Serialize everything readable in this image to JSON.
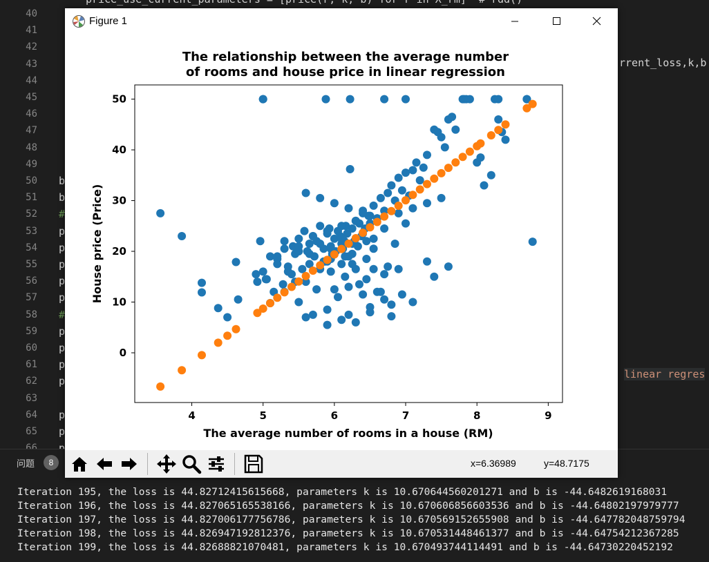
{
  "editor": {
    "line_numbers": [
      "40",
      "41",
      "42",
      "43",
      "44",
      "45",
      "46",
      "47",
      "48",
      "49",
      "50",
      "51",
      "52",
      "53",
      "54",
      "55",
      "56",
      "57",
      "58",
      "59",
      "60",
      "61",
      "62",
      "63",
      "64",
      "65",
      "66"
    ],
    "top_fragment": "price_use_current_parameters = [price(r, k, b) for r in X_rm]  # rdd()",
    "right_fragment_43": "rrent_loss,k,b",
    "right_fragment_62": "linear regres",
    "left_chars": {
      "50": "b",
      "51": "b",
      "52": "#",
      "53": "p",
      "54": "p",
      "55": "p",
      "56": "p",
      "57": "p",
      "58": "#",
      "59": "p",
      "60": "p",
      "61": "p",
      "62": "p",
      "64": "p",
      "65": "p",
      "66": "p"
    }
  },
  "panel": {
    "problems_label": "问题",
    "problems_count": "8"
  },
  "terminal": {
    "lines": [
      "Iteration 195, the loss is 44.82712415615668, parameters k is 10.670644560201271 and b is -44.6482619168031",
      "Iteration 196, the loss is 44.827065165538166, parameters k is 10.670606856603536 and b is -44.64802197979777",
      "Iteration 197, the loss is 44.827006177756786, parameters k is 10.670569152655908 and b is -44.647782048759794",
      "Iteration 198, the loss is 44.826947192812376, parameters k is 10.670531448461377 and b is -44.64754212367285",
      "Iteration 199, the loss is 44.82688821070481, parameters k is 10.670493744114491 and b is -44.64730220452192"
    ]
  },
  "window": {
    "title": "Figure 1",
    "minimize_icon": "minimize-icon",
    "maximize_icon": "maximize-icon",
    "close_icon": "close-icon"
  },
  "toolbar": {
    "icons": [
      "home-icon",
      "back-arrow-icon",
      "forward-arrow-icon",
      "pan-icon",
      "zoom-icon",
      "configure-subplots-icon",
      "save-icon"
    ],
    "x_readout": "x=6.36989",
    "y_readout": "y=48.7175"
  },
  "colors": {
    "scatter": "#1f77b4",
    "fit": "#ff7f0e"
  },
  "chart_data": {
    "type": "scatter",
    "title": "The relationship between the average number\nof rooms and house price in linear regression",
    "title_lines": [
      "The relationship between the average number",
      "of rooms and house price in linear regression"
    ],
    "xlabel": "The average number of rooms in a house (RM)",
    "ylabel": "House price (Price)",
    "xlim": [
      3.2,
      9.2
    ],
    "ylim": [
      -9.8,
      52.8
    ],
    "xticks": [
      4,
      5,
      6,
      7,
      8,
      9
    ],
    "yticks": [
      0,
      10,
      20,
      30,
      40,
      50
    ],
    "grid": false,
    "series": [
      {
        "kind": "data",
        "color": "#1f77b4",
        "x": [
          3.56,
          3.86,
          4.14,
          4.14,
          4.37,
          4.5,
          4.62,
          4.65,
          4.92,
          4.96,
          5.0,
          5.0,
          5.04,
          5.1,
          5.15,
          5.2,
          5.28,
          5.3,
          5.35,
          5.42,
          5.45,
          5.5,
          5.55,
          5.58,
          5.62,
          5.65,
          5.7,
          5.72,
          5.75,
          5.8,
          5.85,
          5.87,
          5.9,
          5.93,
          5.95,
          5.97,
          6.0,
          6.02,
          6.05,
          6.08,
          6.1,
          6.12,
          6.14,
          6.16,
          6.18,
          6.2,
          6.22,
          6.25,
          6.28,
          6.3,
          6.33,
          6.35,
          6.38,
          6.4,
          6.43,
          6.45,
          6.48,
          6.5,
          6.55,
          6.6,
          6.65,
          6.7,
          6.75,
          6.8,
          6.85,
          6.9,
          6.95,
          7.0,
          7.05,
          7.1,
          7.15,
          7.2,
          7.25,
          7.3,
          7.4,
          7.45,
          7.5,
          7.55,
          7.6,
          7.65,
          7.7,
          7.8,
          7.82,
          7.85,
          7.9,
          8.0,
          8.05,
          8.25,
          8.3,
          8.35,
          8.4,
          8.7,
          8.78,
          5.0,
          5.88,
          6.22,
          6.7,
          7.0,
          5.2,
          5.4,
          5.6,
          5.8,
          6.0,
          6.2,
          6.4,
          6.6,
          6.8,
          5.5,
          5.7,
          5.9,
          6.1,
          6.3,
          6.5,
          6.7,
          5.3,
          5.6,
          5.9,
          6.2,
          6.5,
          6.8,
          7.1,
          5.45,
          5.75,
          6.05,
          6.35,
          6.65,
          6.95,
          6.15,
          6.45,
          5.95,
          6.25,
          6.55,
          5.85,
          6.15,
          6.45,
          6.75,
          5.65,
          5.95,
          6.25,
          6.55,
          7.4,
          7.3,
          6.7,
          6.9,
          7.6,
          8.1,
          8.2,
          5.1,
          5.3,
          5.5,
          5.7,
          5.9,
          6.1,
          6.3,
          6.5,
          4.9,
          5.2,
          5.5,
          5.8,
          6.1,
          6.4,
          6.7,
          7.0,
          5.05,
          5.35,
          5.65,
          5.95,
          6.25,
          6.55,
          6.85,
          6.6,
          6.4,
          6.2,
          6.0,
          5.8,
          5.6,
          6.9,
          7.1,
          7.3,
          7.5,
          8.3,
          8.7,
          6.3,
          6.1,
          5.9
        ],
        "y": [
          27.5,
          23.0,
          13.8,
          11.9,
          8.8,
          7.0,
          17.9,
          10.5,
          14.0,
          22.0,
          50.0,
          16.0,
          14.5,
          9.8,
          12.0,
          18.5,
          13.5,
          20.5,
          17.0,
          21.0,
          19.5,
          22.5,
          16.5,
          24.0,
          20.0,
          21.5,
          23.0,
          19.0,
          22.0,
          25.0,
          20.5,
          18.0,
          23.5,
          24.5,
          21.0,
          19.5,
          22.5,
          20.0,
          24.0,
          23.0,
          21.5,
          20.5,
          22.0,
          25.0,
          23.5,
          19.0,
          36.2,
          24.5,
          22.0,
          26.0,
          21.0,
          25.5,
          23.0,
          28.0,
          24.5,
          22.0,
          27.0,
          25.5,
          29.0,
          26.5,
          30.5,
          28.0,
          31.5,
          33.0,
          30.0,
          34.5,
          32.0,
          35.5,
          31.0,
          36.0,
          37.5,
          34.0,
          36.5,
          39.0,
          44.0,
          43.5,
          42.5,
          40.5,
          46.0,
          46.5,
          44.0,
          50.0,
          50.0,
          50.0,
          50.0,
          37.5,
          38.5,
          50.0,
          50.0,
          43.5,
          42.0,
          50.0,
          21.9,
          50.0,
          50.0,
          50.0,
          50.0,
          50.0,
          17.5,
          15.5,
          14.0,
          16.5,
          12.5,
          13.0,
          11.5,
          12.0,
          9.5,
          10.0,
          7.5,
          8.5,
          6.5,
          6.0,
          9.0,
          10.5,
          12.0,
          7.0,
          5.5,
          7.5,
          8.0,
          7.2,
          10.0,
          14.0,
          12.5,
          11.0,
          13.5,
          12.0,
          11.5,
          15.0,
          14.5,
          16.0,
          17.5,
          16.5,
          18.0,
          19.0,
          18.5,
          17.0,
          19.5,
          20.5,
          21.5,
          22.5,
          15.0,
          18.0,
          15.5,
          16.5,
          17.0,
          33.0,
          35.0,
          19.0,
          22.0,
          21.0,
          23.0,
          24.0,
          25.0,
          26.0,
          27.0,
          15.5,
          19.0,
          20.0,
          21.5,
          22.5,
          23.5,
          24.5,
          25.5,
          14.5,
          16.0,
          17.5,
          18.5,
          19.5,
          20.5,
          21.5,
          26.5,
          27.5,
          28.5,
          29.5,
          30.5,
          31.5,
          27.5,
          28.5,
          29.5,
          30.5,
          46.0,
          50.0,
          16.5,
          17.5,
          18.0
        ]
      },
      {
        "kind": "fit",
        "color": "#ff7f0e",
        "x": [
          3.56,
          3.86,
          4.14,
          4.37,
          4.5,
          4.62,
          4.92,
          5.0,
          5.1,
          5.2,
          5.3,
          5.4,
          5.5,
          5.6,
          5.7,
          5.8,
          5.9,
          6.0,
          6.1,
          6.2,
          6.3,
          6.4,
          6.5,
          6.6,
          6.7,
          6.8,
          6.9,
          7.0,
          7.1,
          7.2,
          7.3,
          7.4,
          7.5,
          7.6,
          7.7,
          7.8,
          7.9,
          8.0,
          8.05,
          8.2,
          8.3,
          8.4,
          8.7,
          8.78
        ],
        "y": [
          -6.65,
          -3.45,
          -0.46,
          1.99,
          3.38,
          4.66,
          7.86,
          8.71,
          9.78,
          10.85,
          11.92,
          12.99,
          14.05,
          15.12,
          16.19,
          17.26,
          18.32,
          19.39,
          20.46,
          21.52,
          22.59,
          23.66,
          24.73,
          25.79,
          26.86,
          27.93,
          28.99,
          30.06,
          31.13,
          32.19,
          33.26,
          34.33,
          35.4,
          36.46,
          37.53,
          38.6,
          39.66,
          40.73,
          41.26,
          42.87,
          43.93,
          45.0,
          48.2,
          49.05
        ]
      }
    ]
  }
}
